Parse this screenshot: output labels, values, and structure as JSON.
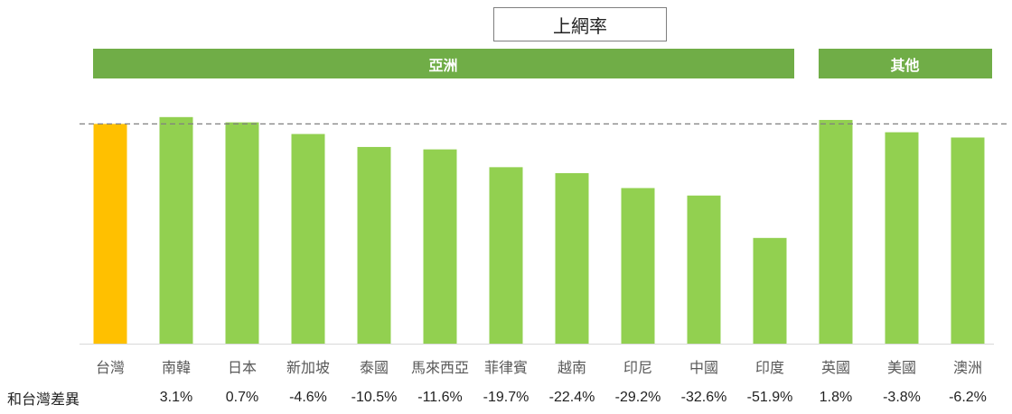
{
  "chart_data": {
    "type": "bar",
    "title": "上網率",
    "groups": [
      {
        "label": "亞洲",
        "start": 0,
        "end": 10
      },
      {
        "label": "其他",
        "start": 11,
        "end": 13
      }
    ],
    "categories": [
      "台灣",
      "南韓",
      "日本",
      "新加坡",
      "泰國",
      "馬來西亞",
      "菲律賓",
      "越南",
      "印尼",
      "中國",
      "印度",
      "英國",
      "美國",
      "澳洲"
    ],
    "values": [
      100,
      103.1,
      100.7,
      95.4,
      89.5,
      88.4,
      80.3,
      77.6,
      70.8,
      67.4,
      48.1,
      101.8,
      96.2,
      93.8
    ],
    "diff_row_label": "和台灣差異",
    "diffs": [
      "",
      "3.1%",
      "0.7%",
      "-4.6%",
      "-10.5%",
      "-11.6%",
      "-19.7%",
      "-22.4%",
      "-29.2%",
      "-32.6%",
      "-51.9%",
      "1.8%",
      "-3.8%",
      "-6.2%"
    ],
    "reference_line": 100,
    "ylim": [
      0,
      110
    ],
    "colors": {
      "highlight": "#ffc000",
      "bar": "#92d050",
      "band": "#70ad47",
      "reference": "#808080"
    }
  }
}
